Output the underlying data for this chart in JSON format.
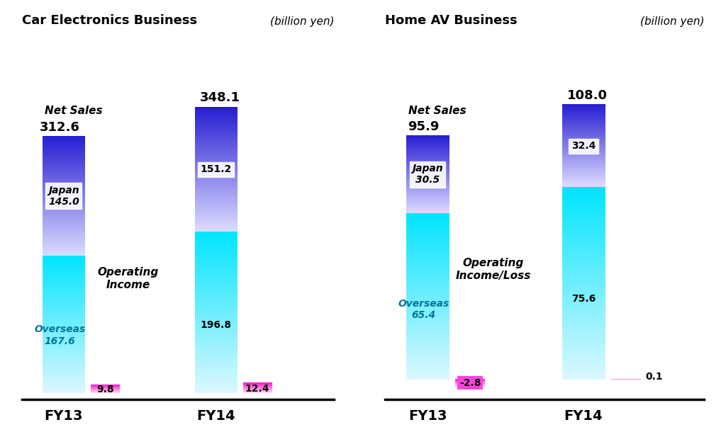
{
  "car_electronics": {
    "title": "Car Electronics Business",
    "unit": "(billion yen)",
    "fy13": {
      "net_sales": 312.6,
      "japan": 145.0,
      "overseas": 167.6,
      "op_income": 9.8
    },
    "fy14": {
      "net_sales": 348.1,
      "japan": 151.2,
      "overseas": 196.8,
      "op_income": 12.4
    },
    "op_income_label": "Operating\nIncome"
  },
  "home_av": {
    "title": "Home AV Business",
    "unit": "(billion yen)",
    "fy13": {
      "net_sales": 95.9,
      "japan": 30.5,
      "overseas": 65.4,
      "op_income": -2.8
    },
    "fy14": {
      "net_sales": 108.0,
      "japan": 32.4,
      "overseas": 75.6,
      "op_income": 0.1
    },
    "op_income_label": "Operating\nIncome/Loss"
  },
  "bar_width": 0.55,
  "op_bar_width": 0.38,
  "cyan_bright": [
    0,
    229,
    255
  ],
  "cyan_white": [
    220,
    248,
    255
  ],
  "blue_dark": [
    40,
    30,
    210
  ],
  "blue_white": [
    220,
    220,
    255
  ],
  "pink_bright": [
    255,
    20,
    200
  ],
  "pink_white": [
    255,
    220,
    245
  ],
  "bg_color": "#ffffff"
}
